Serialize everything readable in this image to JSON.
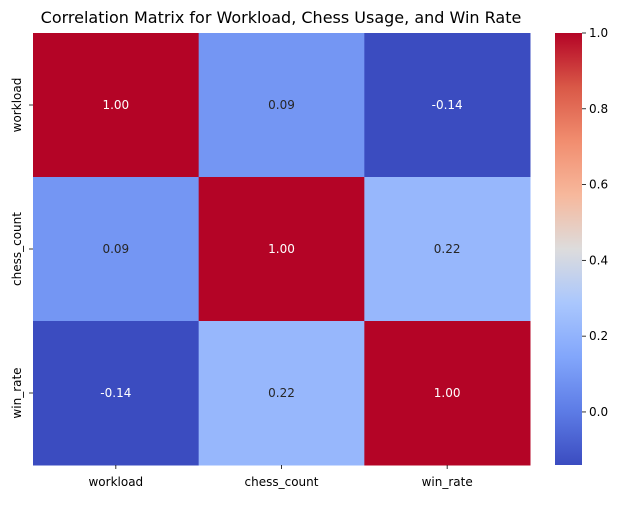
{
  "chart_data": {
    "type": "heatmap",
    "title": "Correlation Matrix for Workload, Chess Usage, and Win Rate",
    "x_labels": [
      "workload",
      "chess_count",
      "win_rate"
    ],
    "y_labels": [
      "workload",
      "chess_count",
      "win_rate"
    ],
    "values": [
      [
        1.0,
        0.09,
        -0.14
      ],
      [
        0.09,
        1.0,
        0.22
      ],
      [
        -0.14,
        0.22,
        1.0
      ]
    ],
    "value_format": "0.00",
    "colormap": "coolwarm",
    "vmin": -0.14,
    "vmax": 1.0,
    "colorbar_ticks": [
      "0.0",
      "0.2",
      "0.4",
      "0.6",
      "0.8",
      "1.0"
    ],
    "colorbar_tick_values": [
      0.0,
      0.2,
      0.4,
      0.6,
      0.8,
      1.0
    ],
    "grid": false,
    "colorbar_position": "right"
  }
}
